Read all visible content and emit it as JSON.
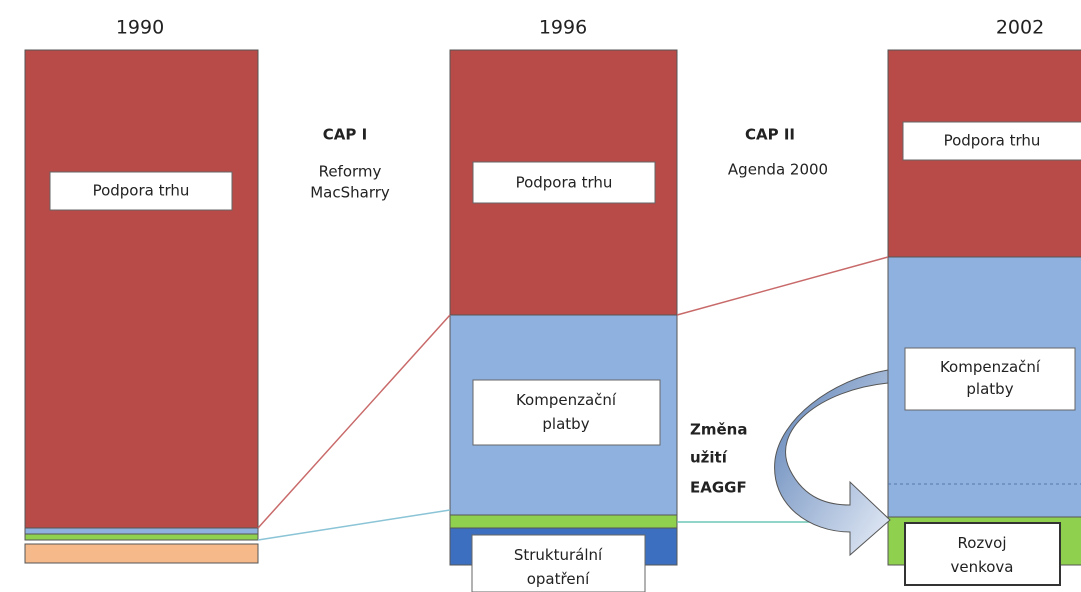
{
  "columns": [
    {
      "year": "1990",
      "market": "Podpora trhu"
    },
    {
      "year": "1996",
      "market": "Podpora trhu",
      "compensation": "Kompenzační platby",
      "structural": "Strukturální opatření"
    },
    {
      "year": "2002",
      "market": "Podpora trhu",
      "compensation": "Kompenzační platby",
      "rural": "Rozvoj venkova"
    }
  ],
  "reforms": [
    {
      "title": "CAP I",
      "lines": [
        "Reformy",
        "MacSharry"
      ]
    },
    {
      "title": "CAP II",
      "lines": [
        "Agenda 2000"
      ]
    }
  ],
  "shift": [
    "Změna",
    "užití",
    "EAGGF"
  ]
}
